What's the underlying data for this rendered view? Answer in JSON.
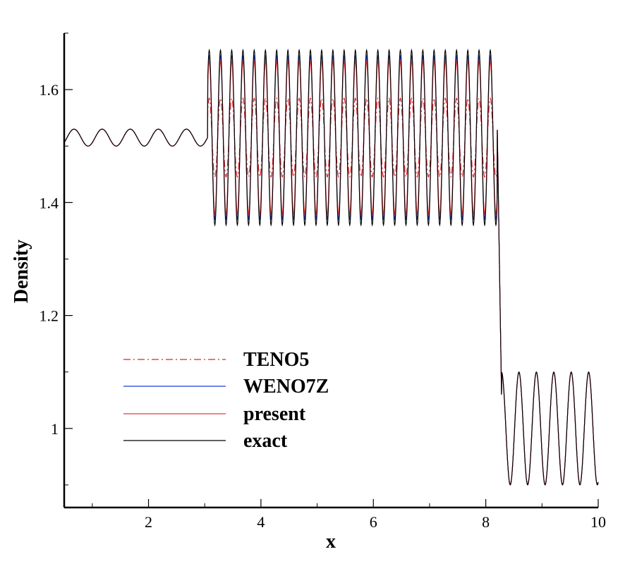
{
  "chart_data": {
    "type": "line",
    "xlabel": "x",
    "ylabel": "Density",
    "xlim": [
      0.5,
      10
    ],
    "ylim": [
      0.86,
      1.7
    ],
    "x_ticks": [
      2,
      4,
      6,
      8,
      10
    ],
    "x_tick_labels": [
      "2",
      "4",
      "6",
      "8",
      "10"
    ],
    "y_ticks": [
      1.0,
      1.2,
      1.4,
      1.6
    ],
    "y_tick_labels": [
      "1",
      "1.2",
      "1.4",
      "1.6"
    ],
    "grid": false,
    "legend_position": "lower-left",
    "x_sample": [
      0.5,
      1.0,
      1.5,
      2.0,
      2.5,
      3.0,
      3.1,
      3.2,
      3.5,
      4.0,
      4.5,
      5.0,
      5.5,
      6.0,
      6.5,
      7.0,
      7.5,
      8.0,
      8.2,
      8.25,
      8.3,
      8.5,
      9.0,
      9.5,
      10.0
    ],
    "series": [
      {
        "name": "TENO5",
        "color": "#d62728",
        "style": "dashdot",
        "amplitude_factor": 0.45,
        "values": [
          1.5,
          1.525,
          1.52,
          1.52,
          1.52,
          1.52,
          1.48,
          1.55,
          1.56,
          1.58,
          1.6,
          1.6,
          1.61,
          1.61,
          1.61,
          1.6,
          1.62,
          1.6,
          1.46,
          1.1,
          1.09,
          1.08,
          1.09,
          1.09,
          0.91
        ]
      },
      {
        "name": "WENO7Z",
        "color": "#1f3fd6",
        "style": "solid",
        "amplitude_factor": 0.93,
        "values": [
          1.5,
          1.525,
          1.52,
          1.52,
          1.52,
          1.52,
          1.42,
          1.65,
          1.64,
          1.66,
          1.67,
          1.67,
          1.67,
          1.67,
          1.66,
          1.66,
          1.67,
          1.66,
          1.5,
          1.1,
          1.09,
          1.09,
          1.09,
          1.09,
          0.91
        ]
      },
      {
        "name": "present",
        "color": "#e8383b",
        "style": "solid",
        "amplitude_factor": 0.87,
        "values": [
          1.5,
          1.525,
          1.52,
          1.52,
          1.52,
          1.52,
          1.43,
          1.63,
          1.62,
          1.65,
          1.66,
          1.66,
          1.66,
          1.66,
          1.65,
          1.65,
          1.66,
          1.65,
          1.48,
          1.1,
          1.09,
          1.09,
          1.09,
          1.09,
          0.91
        ]
      },
      {
        "name": "exact",
        "color": "#000000",
        "style": "solid",
        "amplitude_factor": 1.0,
        "values": [
          1.5,
          1.525,
          1.52,
          1.52,
          1.52,
          1.52,
          1.37,
          1.67,
          1.66,
          1.68,
          1.68,
          1.68,
          1.68,
          1.68,
          1.67,
          1.67,
          1.68,
          1.68,
          1.58,
          1.06,
          1.1,
          1.1,
          1.1,
          1.1,
          0.91
        ]
      }
    ]
  }
}
